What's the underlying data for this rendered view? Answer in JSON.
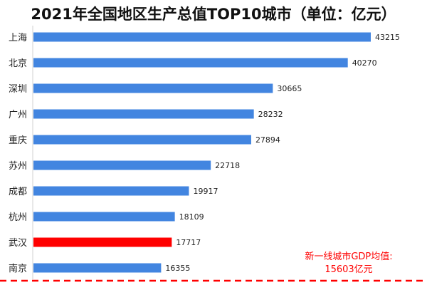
{
  "chart_data": {
    "type": "bar",
    "orientation": "horizontal",
    "title": "2021年全国地区生产总值TOP10城市（单位：亿元）",
    "categories": [
      "上海",
      "北京",
      "深圳",
      "广州",
      "重庆",
      "苏州",
      "成都",
      "杭州",
      "武汉",
      "南京"
    ],
    "values": [
      43215,
      40270,
      30665,
      28232,
      27894,
      22718,
      19917,
      18109,
      17717,
      16355
    ],
    "highlight_category": "武汉",
    "colors": {
      "bar": "#4285e0",
      "highlight": "#ff0000",
      "note": "#ff0000",
      "reference_line": "#ff0000"
    },
    "annotation": {
      "line1": "新一线城市GDP均值:",
      "line2": "15603亿元"
    },
    "reference_line_style": "dashed",
    "grid": false,
    "legend": "none"
  }
}
